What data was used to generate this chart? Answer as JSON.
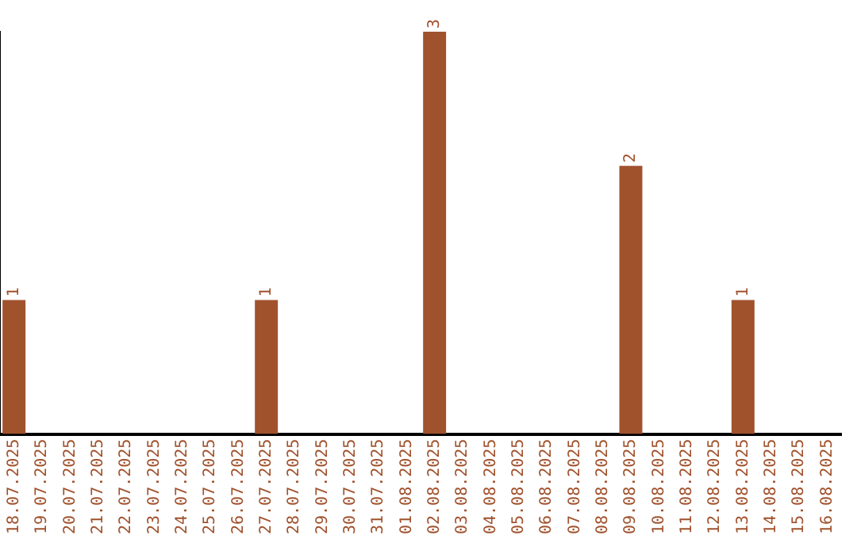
{
  "chart_data": {
    "type": "bar",
    "categories": [
      "18.07.2025",
      "19.07.2025",
      "20.07.2025",
      "21.07.2025",
      "22.07.2025",
      "23.07.2025",
      "24.07.2025",
      "25.07.2025",
      "26.07.2025",
      "27.07.2025",
      "28.07.2025",
      "29.07.2025",
      "30.07.2025",
      "31.07.2025",
      "01.08.2025",
      "02.08.2025",
      "03.08.2025",
      "04.08.2025",
      "05.08.2025",
      "06.08.2025",
      "07.08.2025",
      "08.08.2025",
      "09.08.2025",
      "10.08.2025",
      "11.08.2025",
      "12.08.2025",
      "13.08.2025",
      "14.08.2025",
      "15.08.2025",
      "16.08.2025"
    ],
    "values": [
      1,
      0,
      0,
      0,
      0,
      0,
      0,
      0,
      0,
      1,
      0,
      0,
      0,
      0,
      0,
      3,
      0,
      0,
      0,
      0,
      0,
      0,
      2,
      0,
      0,
      0,
      1,
      0,
      0,
      0
    ],
    "value_labels": [
      "1",
      null,
      null,
      null,
      null,
      null,
      null,
      null,
      null,
      "1",
      null,
      null,
      null,
      null,
      null,
      "3",
      null,
      null,
      null,
      null,
      null,
      null,
      "2",
      null,
      null,
      null,
      "1",
      null,
      null,
      null
    ],
    "color": "#a0522d",
    "grid": false,
    "legend": false,
    "tick_labels": "x"
  }
}
